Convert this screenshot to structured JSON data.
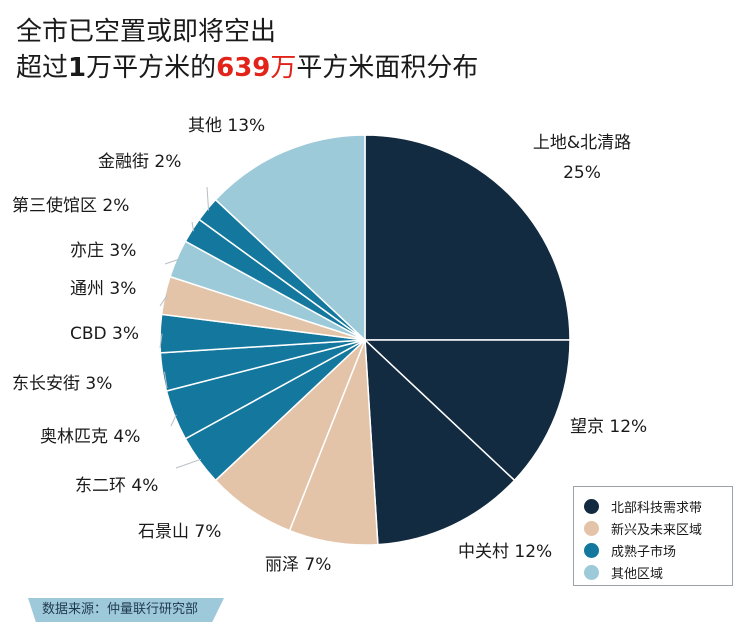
{
  "title": {
    "line1": "全市已空置或即将空出",
    "line2_pre": "超过",
    "line2_num1": "1",
    "line2_mid": "万平方米的",
    "line2_num2": "639",
    "line2_unit": "万",
    "line2_post": "平方米面积分布"
  },
  "chart_data": {
    "type": "pie",
    "slices": [
      {
        "label": "上地&北清路",
        "value": 25,
        "display": "25%",
        "group": "北部科技需求带"
      },
      {
        "label": "望京",
        "value": 12,
        "display": "12%",
        "group": "北部科技需求带"
      },
      {
        "label": "中关村",
        "value": 12,
        "display": "12%",
        "group": "北部科技需求带"
      },
      {
        "label": "丽泽",
        "value": 7,
        "display": "7%",
        "group": "新兴及未来区域"
      },
      {
        "label": "石景山",
        "value": 7,
        "display": "7%",
        "group": "新兴及未来区域"
      },
      {
        "label": "东二环",
        "value": 4,
        "display": "4%",
        "group": "成熟子市场"
      },
      {
        "label": "奥林匹克",
        "value": 4,
        "display": "4%",
        "group": "成熟子市场"
      },
      {
        "label": "东长安街",
        "value": 3,
        "display": "3%",
        "group": "成熟子市场"
      },
      {
        "label": "CBD",
        "value": 3,
        "display": "3%",
        "group": "成熟子市场"
      },
      {
        "label": "通州",
        "value": 3,
        "display": "3%",
        "group": "新兴及未来区域"
      },
      {
        "label": "亦庄",
        "value": 3,
        "display": "3%",
        "group": "其他区域"
      },
      {
        "label": "第三使馆区",
        "value": 2,
        "display": "2%",
        "group": "成熟子市场"
      },
      {
        "label": "金融街",
        "value": 2,
        "display": "2%",
        "group": "成熟子市场"
      },
      {
        "label": "其他",
        "value": 13,
        "display": "13%",
        "group": "其他区域"
      }
    ],
    "legend": {
      "placement": "bottom-right",
      "items": [
        {
          "name": "北部科技需求带",
          "color": "#132b40"
        },
        {
          "name": "新兴及未来区域",
          "color": "#e3c4a8"
        },
        {
          "name": "成熟子市场",
          "color": "#14789e"
        },
        {
          "name": "其他区域",
          "color": "#9ccad9"
        }
      ]
    }
  },
  "source": "数据来源：仲量联行研究部"
}
